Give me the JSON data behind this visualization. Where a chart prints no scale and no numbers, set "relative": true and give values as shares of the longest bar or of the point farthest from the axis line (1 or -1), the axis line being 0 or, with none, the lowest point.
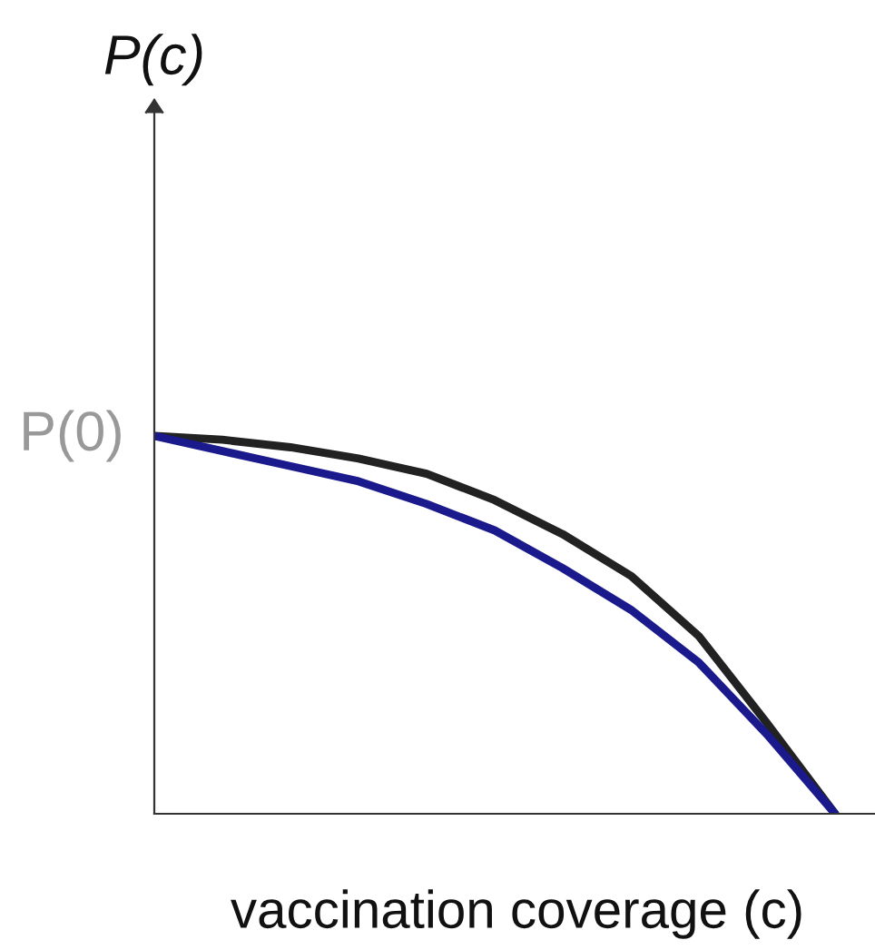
{
  "chart_data": {
    "type": "line",
    "relative": true,
    "xlabel": "vaccination coverage (c)",
    "categories": [
      null,
      null,
      null,
      null,
      null,
      null,
      null,
      null,
      null,
      null,
      null
    ],
    "series": [
      {
        "color": "#222222",
        "values": [
          1,
          0.99,
          0.97,
          0.94,
          0.9,
          0.83,
          0.74,
          0.63,
          0.47,
          0.24,
          0
        ]
      },
      {
        "color": "#1a1a8c",
        "values": [
          1,
          0.96,
          0.92,
          0.88,
          0.82,
          0.75,
          0.65,
          0.54,
          0.4,
          0.21,
          0
        ]
      }
    ],
    "annotations": [
      "P(0)",
      "P(c)"
    ],
    "legend": false,
    "marker": "none",
    "line_style": "solid"
  }
}
